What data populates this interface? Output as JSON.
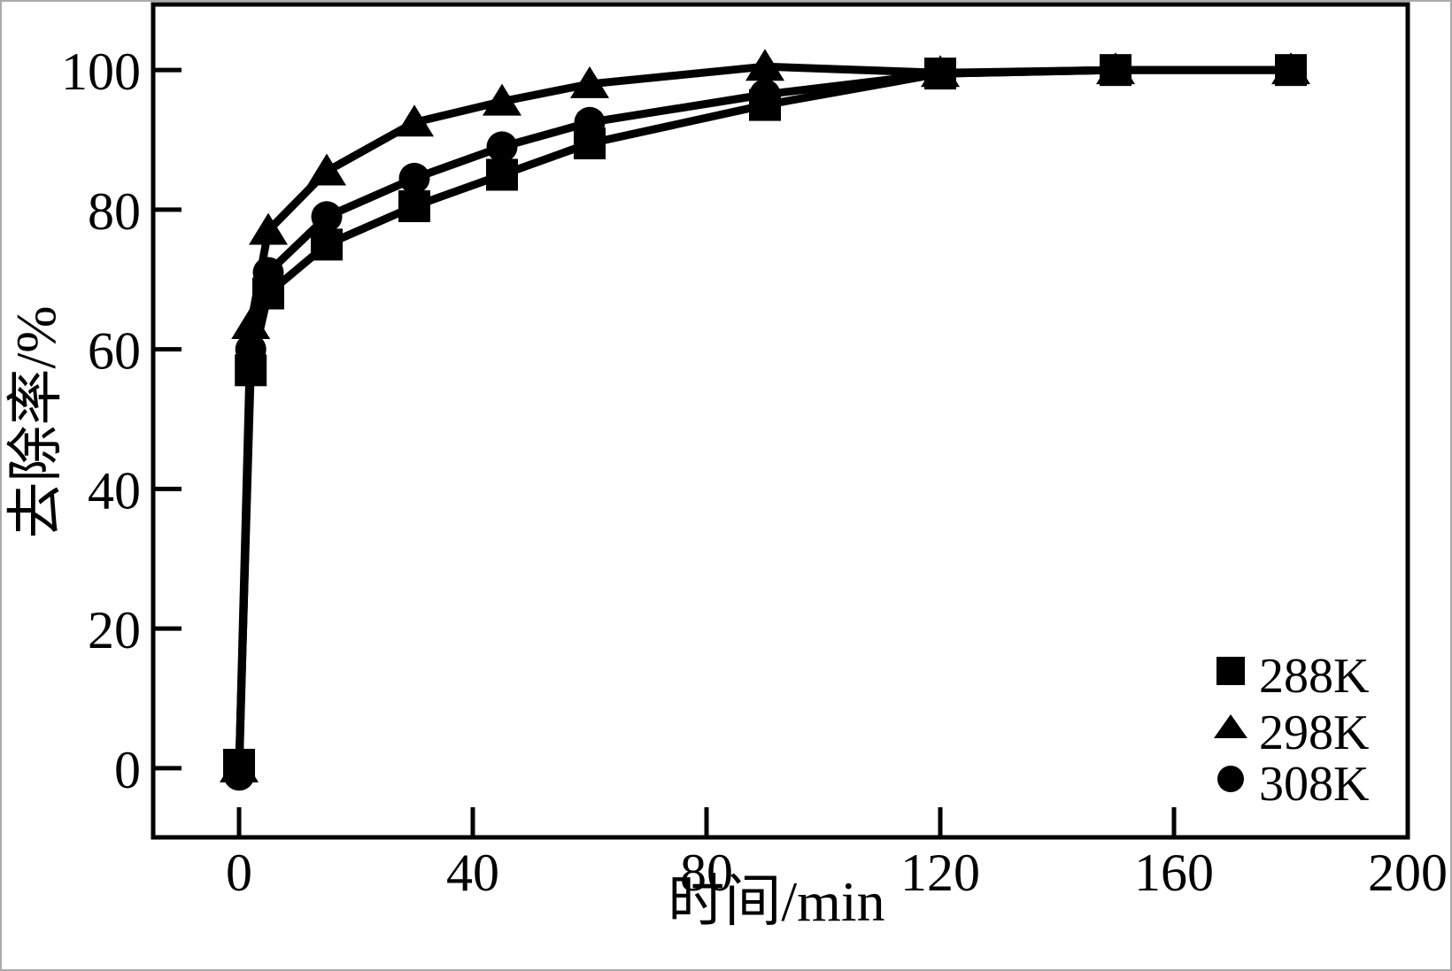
{
  "figure": {
    "kind": "scientific-line-chart",
    "background": "#ffffff"
  },
  "colors": {
    "foreground": "#000000",
    "background": "#ffffff",
    "frame_border": "#aaaaaa"
  },
  "chart_data": {
    "type": "line",
    "title": "",
    "xlabel": "时间/min",
    "ylabel": "去除率/%",
    "x": [
      0,
      2,
      5,
      15,
      30,
      45,
      60,
      90,
      120,
      150,
      180
    ],
    "series": [
      {
        "name": "288K",
        "marker": "square",
        "color": "#000000",
        "values": [
          0.5,
          57,
          68,
          75,
          80.5,
          85,
          89.5,
          95,
          99.5,
          100,
          100
        ]
      },
      {
        "name": "298K",
        "marker": "triangle",
        "color": "#000000",
        "values": [
          0,
          63.5,
          77,
          85.5,
          92.5,
          95.5,
          98,
          100.5,
          99.6,
          100,
          100
        ]
      },
      {
        "name": "308K",
        "marker": "circle",
        "color": "#000000",
        "values": [
          -1,
          60,
          71,
          79,
          84.5,
          89,
          92.5,
          96.5,
          99.5,
          100,
          100
        ]
      }
    ],
    "xticks": [
      0,
      40,
      80,
      120,
      160,
      200
    ],
    "yticks": [
      0,
      20,
      40,
      60,
      80,
      100
    ],
    "xlim": [
      -14.7,
      200
    ],
    "ylim": [
      -9.9,
      109.4
    ],
    "grid": false,
    "legend_position": "lower right",
    "legend_entries": [
      "288K",
      "298K",
      "308K"
    ]
  }
}
